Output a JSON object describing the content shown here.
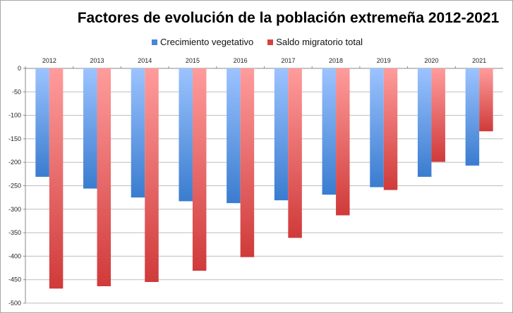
{
  "chart_data": {
    "type": "bar",
    "title": "Factores de evolución de la población extremeña 2012-2021",
    "categories": [
      "2012",
      "2013",
      "2014",
      "2015",
      "2016",
      "2017",
      "2018",
      "2019",
      "2020",
      "2021"
    ],
    "series": [
      {
        "name": "Crecimiento vegetativo",
        "color": "#4a86d8",
        "values": [
          -231,
          -256,
          -275,
          -283,
          -287,
          -281,
          -269,
          -253,
          -231,
          -207
        ]
      },
      {
        "name": "Saldo migratorio total",
        "color": "#d84040",
        "values": [
          -469,
          -464,
          -455,
          -431,
          -402,
          -361,
          -313,
          -259,
          -199,
          -134
        ]
      }
    ],
    "xlabel": "",
    "ylabel": "",
    "ylim": [
      -500,
      0
    ],
    "yticks": [
      0,
      -50,
      -100,
      -150,
      -200,
      -250,
      -300,
      -350,
      -400,
      -450,
      -500
    ],
    "grid": true,
    "legend": "top",
    "x_axis_position": "top"
  }
}
